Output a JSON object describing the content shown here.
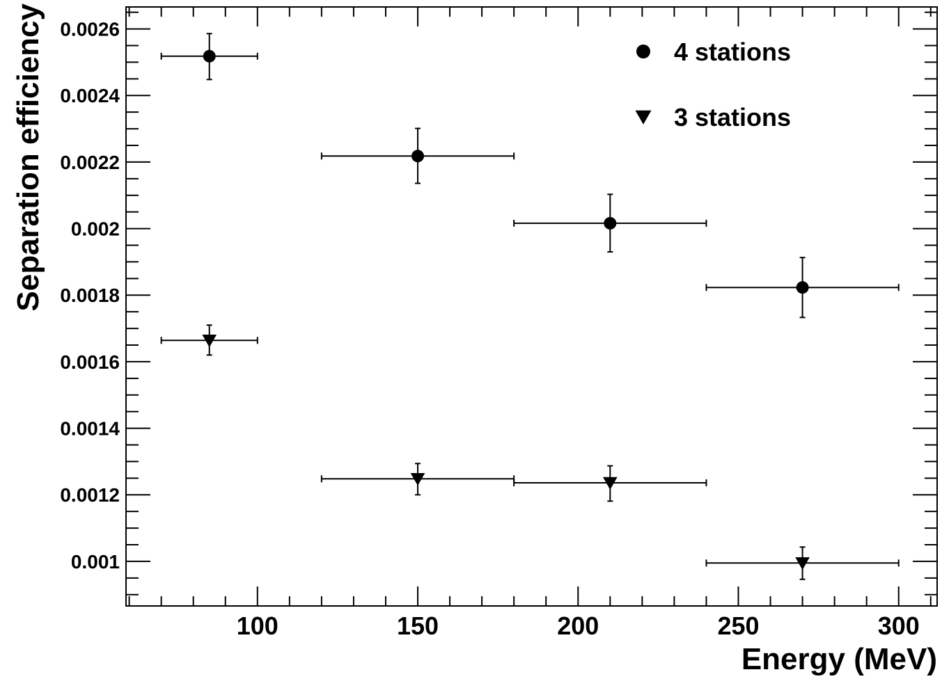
{
  "chart_data": {
    "type": "scatter",
    "title": "",
    "xlabel": "Energy (MeV)",
    "ylabel": "Separation efficiency",
    "xlim": [
      59,
      312
    ],
    "ylim": [
      0.000866,
      0.002666
    ],
    "grid": false,
    "legend_position": "top-right",
    "x_ticks": [
      "100",
      "150",
      "200",
      "250",
      "300"
    ],
    "y_ticks": [
      "0.001",
      "0.0012",
      "0.0014",
      "0.0016",
      "0.0018",
      "0.002",
      "0.0022",
      "0.0024",
      "0.0026"
    ],
    "series": [
      {
        "name": "4 stations",
        "marker": "circle",
        "points": [
          {
            "x": 85,
            "y": 0.002518,
            "xlow": 70,
            "xhigh": 100,
            "ylow": 0.002448,
            "yhigh": 0.002586
          },
          {
            "x": 150,
            "y": 0.002218,
            "xlow": 120,
            "xhigh": 180,
            "ylow": 0.002136,
            "yhigh": 0.002301
          },
          {
            "x": 210,
            "y": 0.002016,
            "xlow": 180,
            "xhigh": 240,
            "ylow": 0.00193,
            "yhigh": 0.002103
          },
          {
            "x": 270,
            "y": 0.001823,
            "xlow": 240,
            "xhigh": 300,
            "ylow": 0.001733,
            "yhigh": 0.001913
          }
        ]
      },
      {
        "name": "3 stations",
        "marker": "triangle-down",
        "points": [
          {
            "x": 85,
            "y": 0.001664,
            "xlow": 70,
            "xhigh": 100,
            "ylow": 0.00162,
            "yhigh": 0.00171
          },
          {
            "x": 150,
            "y": 0.001248,
            "xlow": 120,
            "xhigh": 180,
            "ylow": 0.0012,
            "yhigh": 0.001294
          },
          {
            "x": 210,
            "y": 0.001236,
            "xlow": 180,
            "xhigh": 240,
            "ylow": 0.001181,
            "yhigh": 0.001287
          },
          {
            "x": 270,
            "y": 0.000995,
            "xlow": 240,
            "xhigh": 300,
            "ylow": 0.000946,
            "yhigh": 0.001043
          }
        ]
      }
    ]
  }
}
